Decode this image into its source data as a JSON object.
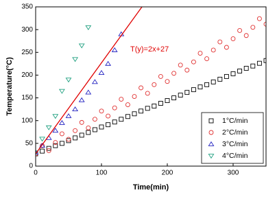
{
  "chart_data": {
    "type": "scatter",
    "x_label": "Time(min)",
    "y_label": "Temperature(°C)",
    "xlim": [
      0,
      350
    ],
    "ylim": [
      0,
      350
    ],
    "xticks": [
      0,
      100,
      200,
      300
    ],
    "yticks": [
      0,
      50,
      100,
      150,
      200,
      250,
      300,
      350
    ],
    "legend": "lower right",
    "series": [
      {
        "name": "1°C/min",
        "color": "#000000",
        "marker": "square",
        "x": [
          0,
          10,
          20,
          30,
          40,
          50,
          60,
          70,
          80,
          90,
          100,
          110,
          120,
          130,
          140,
          150,
          160,
          170,
          180,
          190,
          200,
          210,
          220,
          230,
          240,
          250,
          260,
          270,
          280,
          290,
          300,
          310,
          320,
          330,
          340,
          350
        ],
        "values": [
          27,
          33,
          39,
          45,
          50,
          56,
          62,
          68,
          74,
          80,
          86,
          91,
          97,
          103,
          109,
          115,
          121,
          127,
          132,
          138,
          144,
          150,
          156,
          162,
          168,
          174,
          179,
          185,
          191,
          197,
          203,
          209,
          215,
          220,
          226,
          232
        ]
      },
      {
        "name": "2°C/min",
        "color": "#e03030",
        "marker": "circle",
        "x": [
          0,
          10,
          20,
          30,
          40,
          50,
          60,
          70,
          80,
          90,
          100,
          110,
          120,
          130,
          140,
          150,
          160,
          170,
          180,
          190,
          200,
          210,
          220,
          230,
          240,
          250,
          260,
          270,
          280,
          290,
          300,
          310,
          320,
          330,
          340,
          350
        ],
        "values": [
          27,
          45,
          34,
          52,
          71,
          59,
          78,
          96,
          84,
          103,
          121,
          110,
          128,
          147,
          135,
          153,
          172,
          160,
          179,
          197,
          186,
          204,
          222,
          211,
          229,
          248,
          236,
          255,
          273,
          261,
          280,
          298,
          287,
          305,
          324,
          312
        ]
      },
      {
        "name": "3°C/min",
        "color": "#2020c0",
        "marker": "triangle",
        "x": [
          0,
          10,
          20,
          30,
          40,
          50,
          60,
          70,
          80,
          90,
          100,
          110,
          120,
          130
        ],
        "values": [
          30,
          45,
          62,
          78,
          95,
          110,
          125,
          145,
          162,
          185,
          205,
          225,
          255,
          290
        ]
      },
      {
        "name": "4°C/min",
        "color": "#20a080",
        "marker": "triangle-down",
        "x": [
          0,
          10,
          20,
          30,
          40,
          50,
          60,
          70,
          80
        ],
        "values": [
          30,
          60,
          85,
          110,
          165,
          190,
          235,
          265,
          305
        ]
      }
    ],
    "fit_line": {
      "color": "#e00000",
      "x": [
        0,
        161.5
      ],
      "values": [
        27,
        350
      ]
    },
    "annotation": "T(y)=2x+27"
  }
}
